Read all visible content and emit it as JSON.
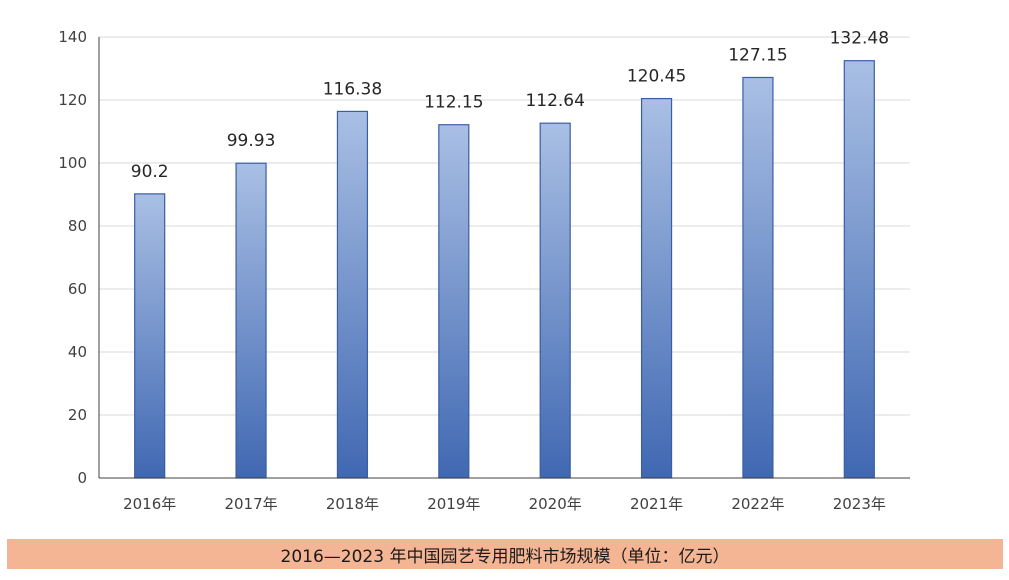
{
  "caption": "2016—2023 年中国园艺专用肥料市场规模（单位：亿元）",
  "chart_data": {
    "type": "bar",
    "categories": [
      "2016年",
      "2017年",
      "2018年",
      "2019年",
      "2020年",
      "2021年",
      "2022年",
      "2023年"
    ],
    "values": [
      90.2,
      99.93,
      116.38,
      112.15,
      112.64,
      120.45,
      127.15,
      132.48
    ],
    "value_labels": [
      "90.2",
      "99.93",
      "116.38",
      "112.15",
      "112.64",
      "120.45",
      "127.15",
      "132.48"
    ],
    "ylim": [
      0,
      140
    ],
    "yticks": [
      0,
      20,
      40,
      60,
      80,
      100,
      120,
      140
    ],
    "ytick_labels": [
      "0",
      "20",
      "40",
      "60",
      "80",
      "100",
      "120",
      "140"
    ],
    "grid": true,
    "legend": "none",
    "colors": {
      "bar_top": "#a9bfe4",
      "bar_bottom": "#4068b2",
      "bar_border": "#3a5ea6",
      "grid": "#d9d9d9",
      "axis": "#404040",
      "caption_bg": "#f4b594"
    }
  }
}
